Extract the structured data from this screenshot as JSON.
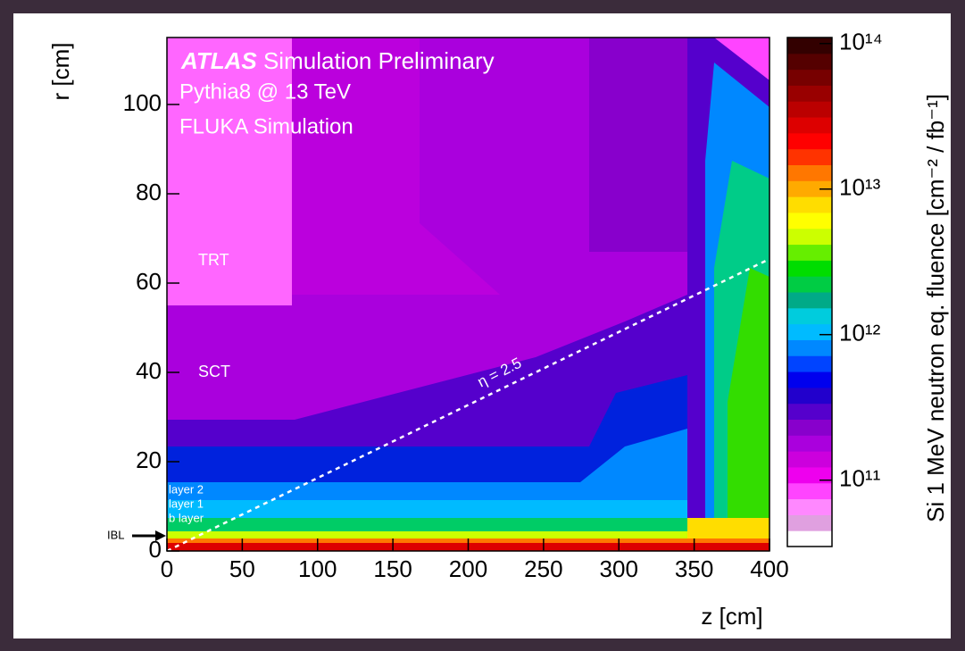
{
  "chart_data": {
    "type": "heatmap",
    "title": "ATLAS",
    "subtitle": "Simulation Preliminary",
    "annotations": [
      "Pythia8 @ 13 TeV",
      "FLUKA Simulation"
    ],
    "region_labels": [
      "TRT",
      "SCT",
      "layer 2",
      "layer 1",
      "b layer",
      "IBL"
    ],
    "line_label": "η = 2.5",
    "xlabel": "z [cm]",
    "ylabel": "r [cm]",
    "xlim": [
      0,
      400
    ],
    "xticks": [
      0,
      50,
      100,
      150,
      200,
      250,
      300,
      350,
      400
    ],
    "ylim": [
      0,
      115
    ],
    "yticks": [
      0,
      20,
      40,
      60,
      80,
      100
    ],
    "colorbar": {
      "label": "Si 1 MeV neutron eq. fluence [cm⁻² / fb⁻¹]",
      "log": true,
      "zlim": [
        35000000000,
        110000000000000
      ],
      "ticks": [
        {
          "value": 100000000000,
          "label": "10¹¹"
        },
        {
          "value": 1000000000000,
          "label": "10¹²"
        },
        {
          "value": 10000000000000,
          "label": "10¹³"
        },
        {
          "value": 100000000000000,
          "label": "10¹⁴"
        }
      ],
      "colors": [
        "#ffffff",
        "#e0a0e0",
        "#ff88ff",
        "#ff44ff",
        "#ee00ee",
        "#cc00dd",
        "#aa00dd",
        "#8800cc",
        "#5500cc",
        "#2200cc",
        "#0000ee",
        "#0044ff",
        "#0088ff",
        "#00bbff",
        "#00ccdd",
        "#00aa88",
        "#00cc44",
        "#00dd00",
        "#66ee00",
        "#ccff00",
        "#ffff00",
        "#ffdd00",
        "#ffaa00",
        "#ff7700",
        "#ff3300",
        "#ff0000",
        "#dd0000",
        "#bb0000",
        "#990000",
        "#770000",
        "#550000",
        "#330000"
      ]
    }
  }
}
